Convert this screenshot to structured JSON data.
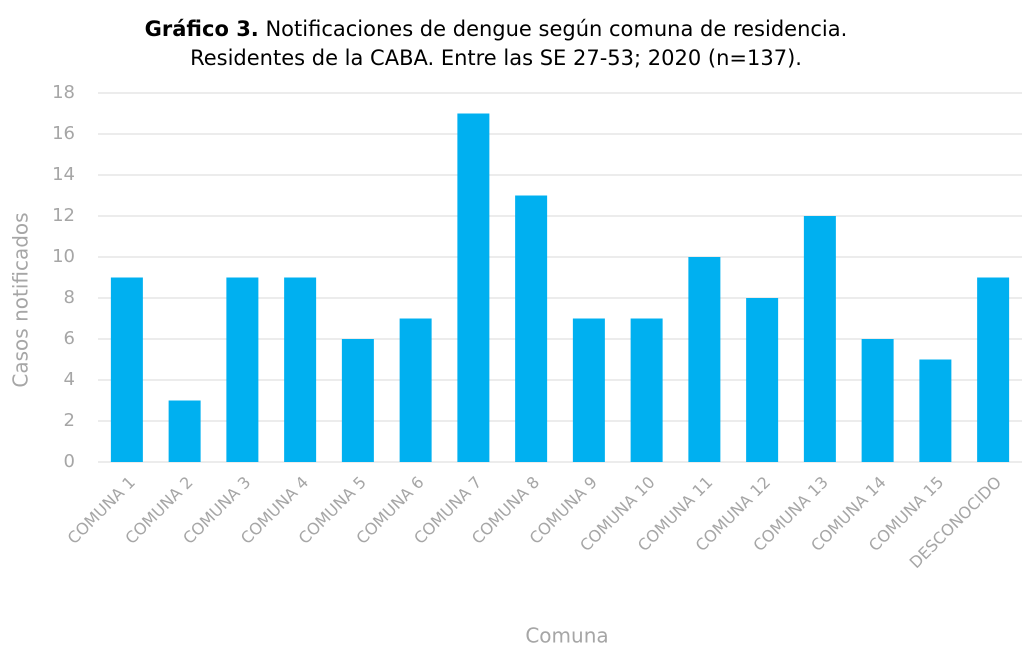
{
  "chart_data": {
    "type": "bar",
    "title_label": "Gráfico 3.",
    "title": "Notificaciones de dengue según comuna de residencia.",
    "subtitle": "Residentes de la CABA. Entre las SE 27-53; 2020 (n=137).",
    "x_label": "Comuna",
    "y_label": "Casos notificados",
    "categories": [
      "COMUNA 1",
      "COMUNA 2",
      "COMUNA 3",
      "COMUNA 4",
      "COMUNA 5",
      "COMUNA 6",
      "COMUNA 7",
      "COMUNA 8",
      "COMUNA 9",
      "COMUNA 10",
      "COMUNA 11",
      "COMUNA 12",
      "COMUNA 13",
      "COMUNA 14",
      "COMUNA 15",
      "DESCONOCIDO"
    ],
    "values": [
      9,
      3,
      9,
      9,
      6,
      7,
      17,
      13,
      7,
      7,
      10,
      8,
      12,
      6,
      5,
      9
    ],
    "color": "#00b0f0",
    "ylim": [
      0,
      18
    ],
    "yticks": [
      0,
      2,
      4,
      6,
      8,
      10,
      12,
      14,
      16,
      18
    ],
    "grid": true
  }
}
